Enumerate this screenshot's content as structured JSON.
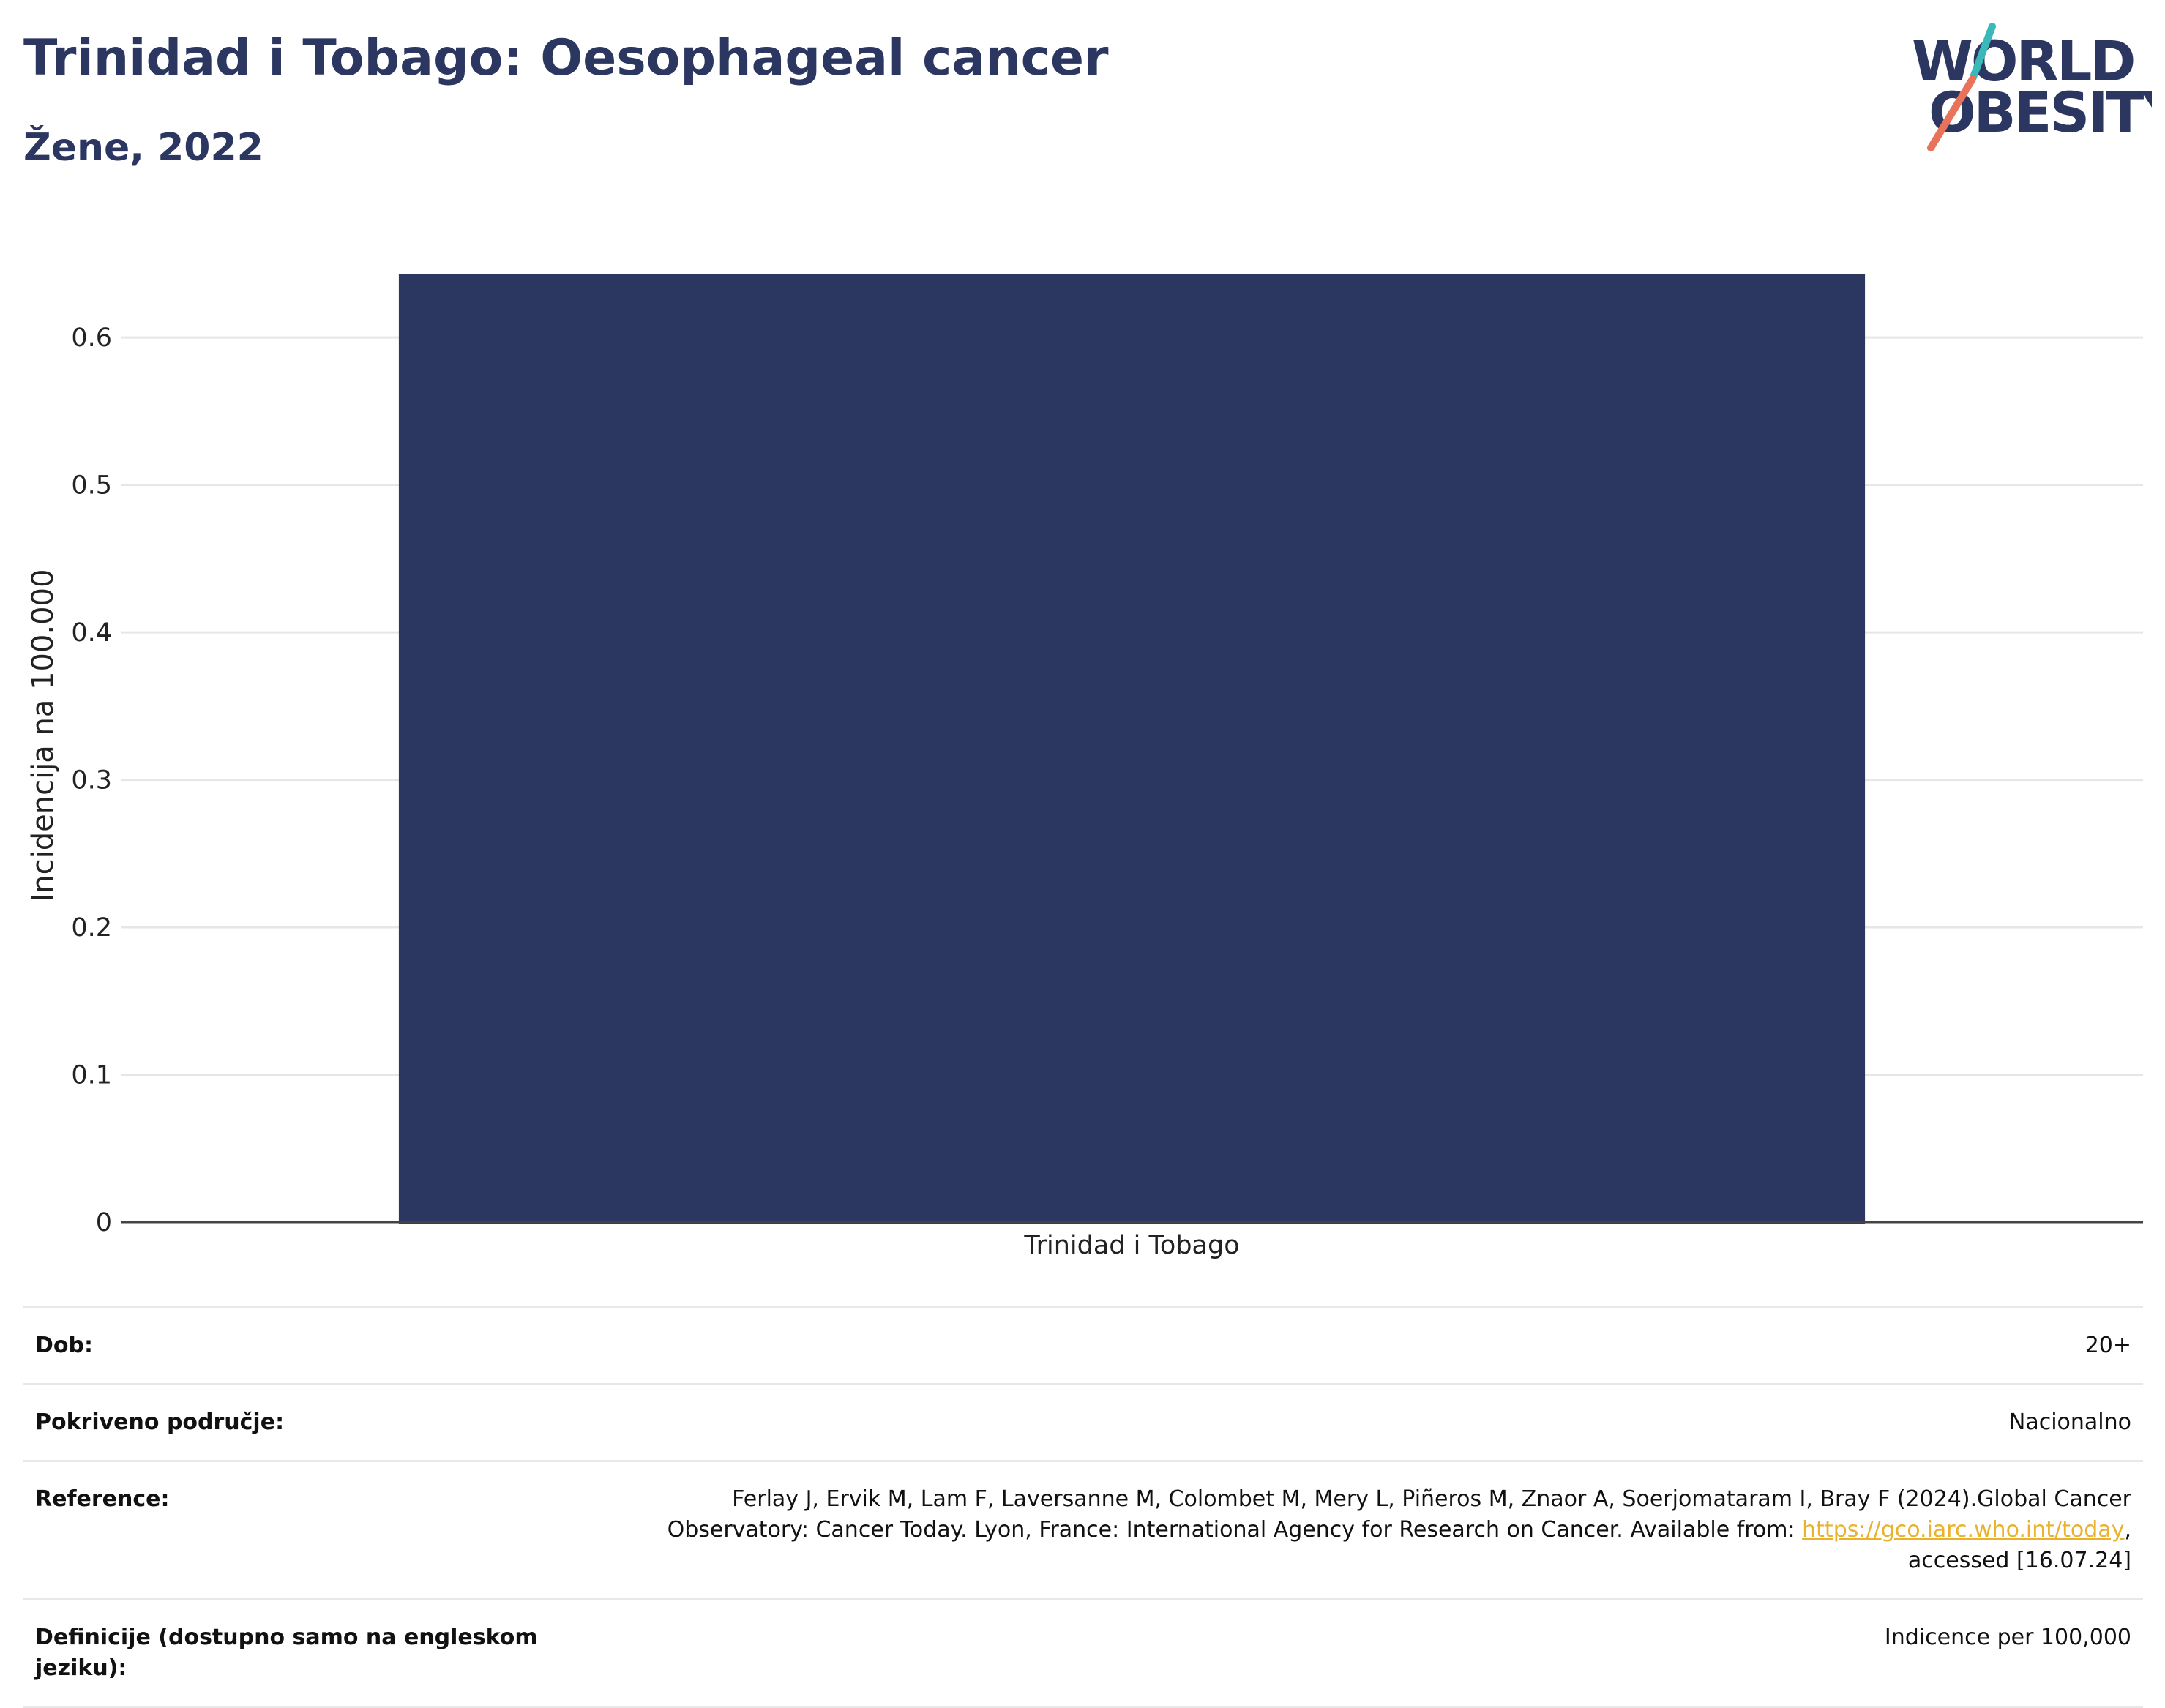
{
  "header": {
    "title": "Trinidad i Tobago: Oesophageal cancer",
    "subtitle": "Žene, 2022"
  },
  "logo": {
    "line1": "WORLD",
    "line2": "OBESITY",
    "colors": {
      "text": "#2b3661",
      "slash_top": "#3bb8b8",
      "slash_bottom": "#e8735a"
    }
  },
  "chart_data": {
    "type": "bar",
    "categories": [
      "Trinidad i Tobago"
    ],
    "values": [
      0.643
    ],
    "title": "Trinidad i Tobago: Oesophageal cancer",
    "subtitle": "Žene, 2022",
    "xlabel": "",
    "ylabel": "Incidencija na 100.000",
    "ylim": [
      0,
      0.68
    ],
    "yticks": [
      0,
      0.1,
      0.2,
      0.3,
      0.4,
      0.5,
      0.6
    ],
    "ytick_labels": [
      "0",
      "0.1",
      "0.2",
      "0.3",
      "0.4",
      "0.5",
      "0.6"
    ],
    "grid": true,
    "bar_color": "#2b3661"
  },
  "meta": {
    "rows": [
      {
        "label": "Dob:",
        "value": "20+"
      },
      {
        "label": "Pokriveno područje:",
        "value": "Nacionalno"
      },
      {
        "label": "Reference:",
        "value_before": "Ferlay J, Ervik M, Lam F, Laversanne M, Colombet M, Mery L, Piñeros M, Znaor A, Soerjomataram I, Bray F (2024).Global Cancer Observatory: Cancer Today. Lyon, France: International Agency for Research on Cancer. Available from: ",
        "link": "https://gco.iarc.who.int/today",
        "value_after": ", accessed [16.07.24]"
      },
      {
        "label": "Definicije (dostupno samo na engleskom jeziku):",
        "value": "Indicence per 100,000"
      }
    ]
  }
}
